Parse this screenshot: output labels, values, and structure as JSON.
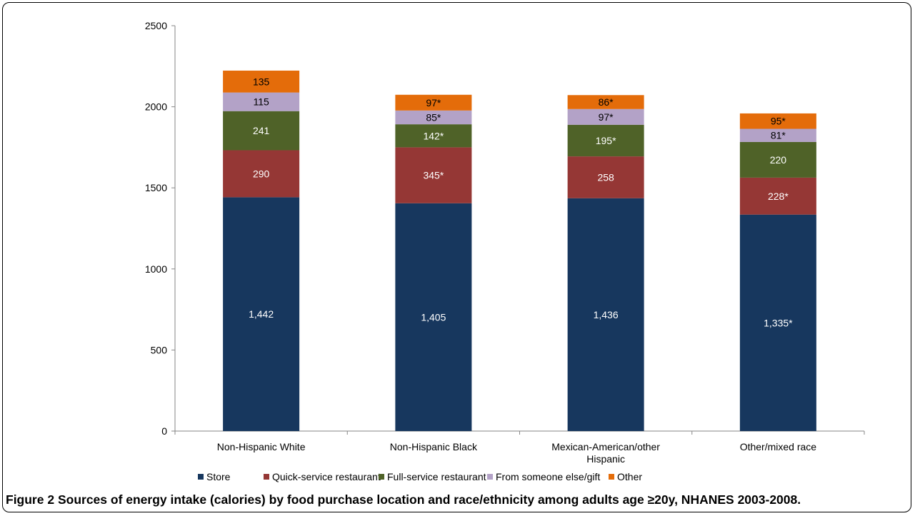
{
  "chart_data": {
    "type": "stacked-bar",
    "categories": [
      {
        "line1": "Non-Hispanic White",
        "line2": ""
      },
      {
        "line1": "Non-Hispanic Black",
        "line2": ""
      },
      {
        "line1": "Mexican-American/other",
        "line2": "Hispanic"
      },
      {
        "line1": "Other/mixed race",
        "line2": ""
      }
    ],
    "ylim": [
      0,
      2500
    ],
    "yticks": [
      0,
      500,
      1000,
      1500,
      2000,
      2500
    ],
    "legend_position": "bottom",
    "series": [
      {
        "name": "Store",
        "color": "#17375e",
        "label_color": "#ffffff",
        "values": [
          1442,
          1405,
          1436,
          1335
        ],
        "labels": [
          "1,442",
          "1,405",
          "1,436",
          "1,335*"
        ]
      },
      {
        "name": "Quick-service restaurant",
        "color": "#953735",
        "label_color": "#ffffff",
        "values": [
          290,
          345,
          258,
          228
        ],
        "labels": [
          "290",
          "345*",
          "258",
          "228*"
        ]
      },
      {
        "name": "Full-service restaurant",
        "color": "#4f6228",
        "label_color": "#ffffff",
        "values": [
          241,
          142,
          195,
          220
        ],
        "labels": [
          "241",
          "142*",
          "195*",
          "220"
        ]
      },
      {
        "name": "From someone else/gift",
        "color": "#b3a2c7",
        "label_color": "#000000",
        "values": [
          115,
          85,
          97,
          81
        ],
        "labels": [
          "115",
          "85*",
          "97*",
          "81*"
        ]
      },
      {
        "name": "Other",
        "color": "#e46c0a",
        "label_color": "#000000",
        "values": [
          135,
          97,
          86,
          95
        ],
        "labels": [
          "135",
          "97*",
          "86*",
          "95*"
        ]
      }
    ]
  },
  "caption": {
    "label": "Figure 2",
    "text": "Sources of energy intake (calories) by food purchase location and race/ethnicity among adults age ≥20y, NHANES 2003-2008."
  }
}
